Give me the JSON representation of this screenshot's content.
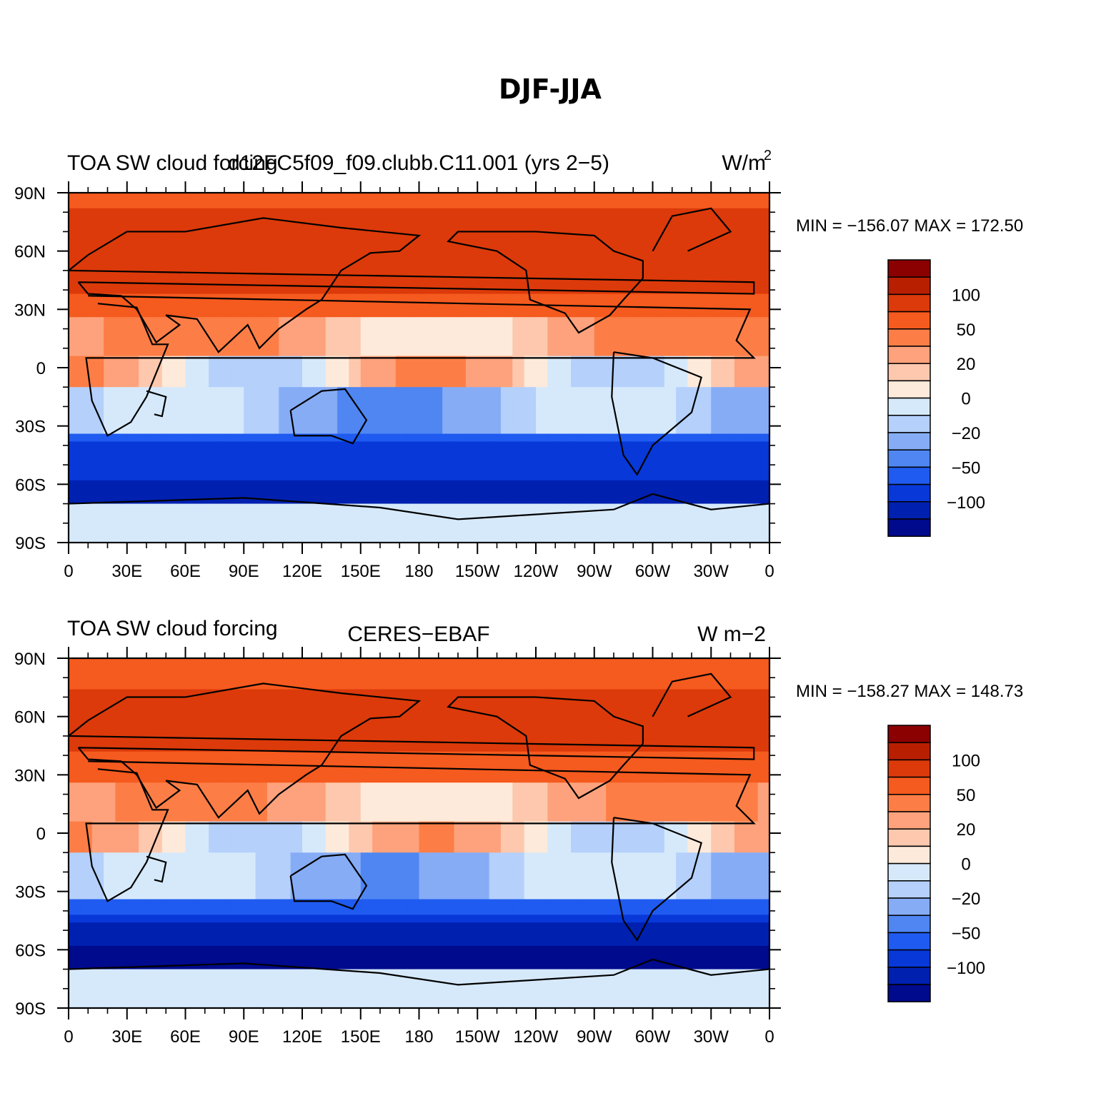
{
  "figure": {
    "title": "DJF-JJA"
  },
  "lon_ticks": [
    "0",
    "30E",
    "60E",
    "90E",
    "120E",
    "150E",
    "180",
    "150W",
    "120W",
    "90W",
    "60W",
    "30W",
    "0"
  ],
  "lat_ticks": [
    "90N",
    "60N",
    "30N",
    "0",
    "30S",
    "60S",
    "90S"
  ],
  "colorbar": {
    "labels": [
      "100",
      "50",
      "20",
      "0",
      "−20",
      "−50",
      "−100"
    ],
    "colors": [
      "#8b0000",
      "#b81f00",
      "#dc3a0a",
      "#f55a1e",
      "#fc7e46",
      "#fda27c",
      "#fdc8ad",
      "#fdeada",
      "#d6e9fb",
      "#b4d0fb",
      "#86acf6",
      "#4f86f2",
      "#1f5bf0",
      "#0838d8",
      "#0020b0",
      "#000a8c"
    ]
  },
  "panels": [
    {
      "left_title": "TOA SW cloud forcing",
      "center_title": "d12FC5f09_f09.clubb.C11.001 (yrs 2−5)",
      "right_title": "W/m",
      "right_title_sup": "2",
      "min_label": "MIN",
      "min_value": "−156.07",
      "max_label": "MAX",
      "max_value": "172.50",
      "field_ranges": {
        "min": -156.07,
        "max": 172.5
      }
    },
    {
      "left_title": "TOA SW cloud forcing",
      "center_title": "CERES−EBAF",
      "right_title": "W m−2",
      "right_title_sup": "",
      "min_label": "MIN",
      "min_value": "−158.27",
      "max_label": "MAX",
      "max_value": "148.73",
      "field_ranges": {
        "min": -158.27,
        "max": 148.73
      }
    }
  ]
}
